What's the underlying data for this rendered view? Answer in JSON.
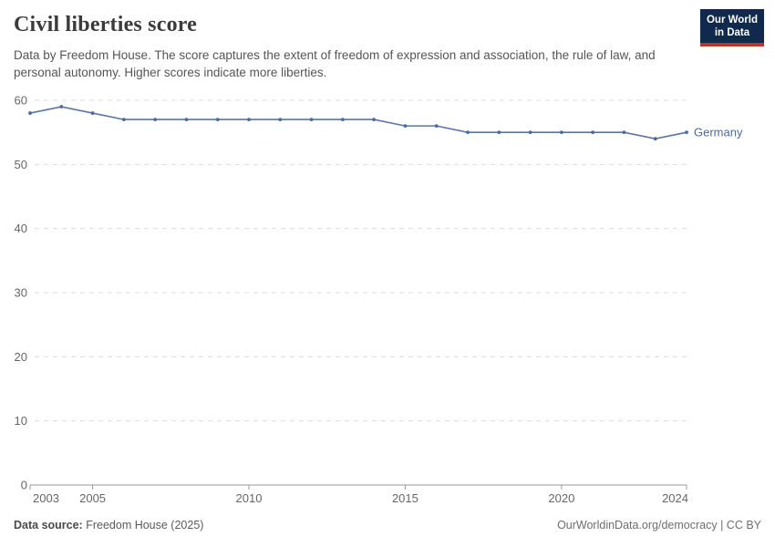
{
  "header": {
    "title": "Civil liberties score",
    "subtitle": "Data by Freedom House. The score captures the extent of freedom of expression and association, the rule of law, and personal autonomy. Higher scores indicate more liberties.",
    "logo": {
      "line1": "Our World",
      "line2": "in Data"
    }
  },
  "chart_data": {
    "type": "line",
    "title": "Civil liberties score",
    "xlabel": "",
    "ylabel": "",
    "xlim": [
      2003,
      2024
    ],
    "ylim": [
      0,
      60
    ],
    "x_ticks": [
      2003,
      2005,
      2010,
      2015,
      2020,
      2024
    ],
    "y_ticks": [
      0,
      10,
      20,
      30,
      40,
      50,
      60
    ],
    "grid": "horizontal-dashed",
    "legend_position": "end-of-line-label",
    "series": [
      {
        "name": "Germany",
        "color": "#4c6a9c",
        "line_color": "#5d74a8",
        "x": [
          2003,
          2004,
          2005,
          2006,
          2007,
          2008,
          2009,
          2010,
          2011,
          2012,
          2013,
          2014,
          2015,
          2016,
          2017,
          2018,
          2019,
          2020,
          2021,
          2022,
          2023,
          2024
        ],
        "values": [
          58,
          59,
          58,
          57,
          57,
          57,
          57,
          57,
          57,
          57,
          57,
          57,
          56,
          56,
          55,
          55,
          55,
          55,
          55,
          55,
          54,
          55
        ]
      }
    ],
    "colors": {
      "grid": "#dcdcdc",
      "axis": "#999999",
      "tick_label": "#666666"
    }
  },
  "footer": {
    "source_label": "Data source:",
    "source_value": " Freedom House (2025)",
    "credit": "OurWorldinData.org/democracy | CC BY"
  }
}
